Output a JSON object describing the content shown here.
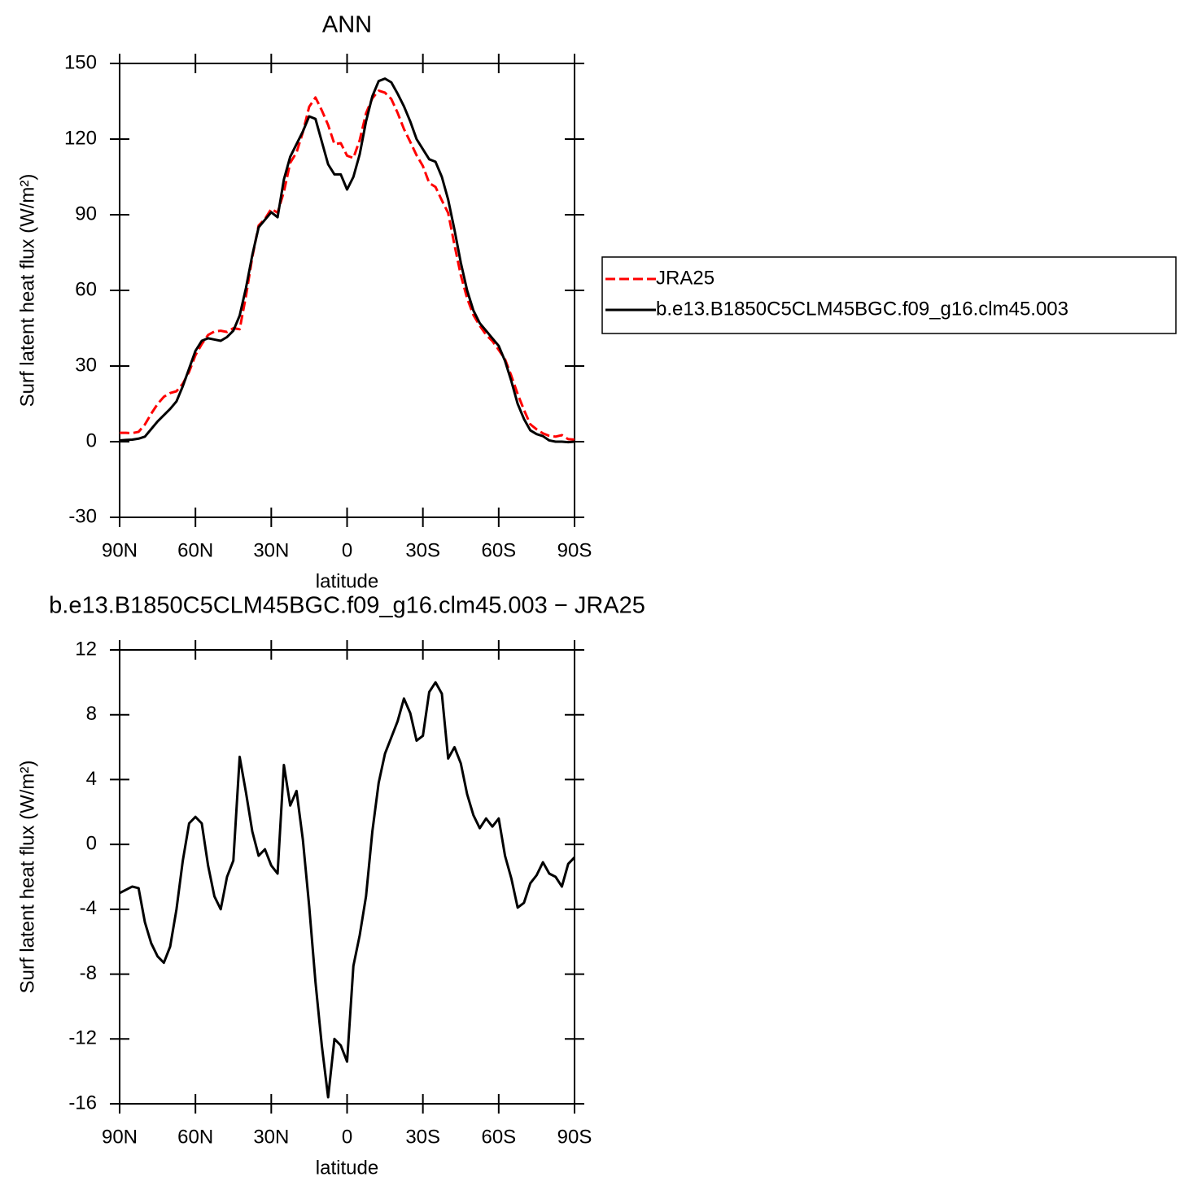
{
  "chart_data": [
    {
      "type": "line",
      "title": "ANN",
      "xlabel": "latitude",
      "ylabel": "Surf latent heat flux (W/m²)",
      "x": [
        90,
        87.5,
        85,
        82.5,
        80,
        77.5,
        75,
        72.5,
        70,
        67.5,
        65,
        62.5,
        60,
        57.5,
        55,
        52.5,
        50,
        47.5,
        45,
        42.5,
        40,
        37.5,
        35,
        32.5,
        30,
        27.5,
        25,
        22.5,
        20,
        17.5,
        15,
        12.5,
        10,
        7.5,
        5,
        2.5,
        0,
        -2.5,
        -5,
        -7.5,
        -10,
        -12.5,
        -15,
        -17.5,
        -20,
        -22.5,
        -25,
        -27.5,
        -30,
        -32.5,
        -35,
        -37.5,
        -40,
        -42.5,
        -45,
        -47.5,
        -50,
        -52.5,
        -55,
        -57.5,
        -60,
        -62.5,
        -65,
        -67.5,
        -70,
        -72.5,
        -75,
        -77.5,
        -80,
        -82.5,
        -85,
        -87.5,
        -90
      ],
      "series": [
        {
          "name": "JRA25",
          "color": "#ff0000",
          "style": "dashed",
          "values": [
            3.5,
            3.5,
            3.4,
            3.9,
            6.8,
            11.1,
            14.9,
            17.8,
            19.3,
            20,
            23,
            27.7,
            34.3,
            38.7,
            42.3,
            43.7,
            44,
            43.5,
            45,
            44.6,
            57.8,
            73.2,
            85.7,
            88.3,
            92.3,
            90.8,
            99.1,
            110.6,
            114.7,
            122.7,
            132.8,
            136.5,
            131.4,
            125.6,
            118,
            118.4,
            113.4,
            112.5,
            119.6,
            130.2,
            136.2,
            139.2,
            138.4,
            135.9,
            130.4,
            124,
            118.9,
            113.6,
            109.3,
            102.6,
            101,
            95.7,
            90.7,
            78,
            66,
            56.9,
            50.2,
            46,
            42.4,
            39.9,
            36.4,
            32.7,
            26.1,
            18.9,
            12.6,
            6.9,
            4.9,
            3.3,
            2.3,
            2,
            2.6,
            1,
            0.8
          ]
        },
        {
          "name": "b.e13.B1850C5CLM45BGC.f09_g16.clm45.003",
          "color": "#000000",
          "style": "solid",
          "values": [
            0.5,
            0.7,
            0.8,
            1.2,
            2,
            5,
            8,
            10.5,
            13,
            16,
            22,
            29,
            36,
            40,
            41,
            40.5,
            40,
            41.5,
            44,
            50,
            61,
            74,
            85,
            88,
            91,
            89,
            104,
            113,
            118,
            123,
            129,
            128,
            119,
            110,
            106,
            106,
            100,
            105,
            114,
            127,
            137,
            143,
            144,
            142.5,
            138,
            133,
            127,
            120,
            116,
            112,
            111,
            105,
            96,
            84,
            71,
            60,
            52,
            47,
            44,
            41,
            38,
            32,
            24,
            15,
            9,
            4.5,
            3,
            2.2,
            0.5,
            0,
            0,
            -0.2,
            0
          ]
        }
      ],
      "xlim": [
        90,
        -90
      ],
      "xticks": [
        {
          "value": 90,
          "label": "90N"
        },
        {
          "value": 60,
          "label": "60N"
        },
        {
          "value": 30,
          "label": "30N"
        },
        0,
        {
          "value": -30,
          "label": "30S"
        },
        {
          "value": -60,
          "label": "60S"
        },
        {
          "value": -90,
          "label": "90S"
        }
      ],
      "ylim": [
        -30,
        150
      ],
      "yticks": [
        -30,
        0,
        30,
        60,
        90,
        120,
        150
      ],
      "legend": "right"
    },
    {
      "type": "line",
      "title": "b.e13.B1850C5CLM45BGC.f09_g16.clm45.003 − JRA25",
      "xlabel": "latitude",
      "ylabel": "Surf latent heat flux (W/m²)",
      "x": [
        90,
        87.5,
        85,
        82.5,
        80,
        77.5,
        75,
        72.5,
        70,
        67.5,
        65,
        62.5,
        60,
        57.5,
        55,
        52.5,
        50,
        47.5,
        45,
        42.5,
        40,
        37.5,
        35,
        32.5,
        30,
        27.5,
        25,
        22.5,
        20,
        17.5,
        15,
        12.5,
        10,
        7.5,
        5,
        2.5,
        0,
        -2.5,
        -5,
        -7.5,
        -10,
        -12.5,
        -15,
        -17.5,
        -20,
        -22.5,
        -25,
        -27.5,
        -30,
        -32.5,
        -35,
        -37.5,
        -40,
        -42.5,
        -45,
        -47.5,
        -50,
        -52.5,
        -55,
        -57.5,
        -60,
        -62.5,
        -65,
        -67.5,
        -70,
        -72.5,
        -75,
        -77.5,
        -80,
        -82.5,
        -85,
        -87.5,
        -90
      ],
      "series": [
        {
          "color": "#000000",
          "style": "solid",
          "values": [
            -3,
            -2.8,
            -2.6,
            -2.7,
            -4.8,
            -6.1,
            -6.9,
            -7.3,
            -6.3,
            -4,
            -1,
            1.3,
            1.7,
            1.3,
            -1.3,
            -3.2,
            -4,
            -2,
            -1,
            5.4,
            3.2,
            0.8,
            -0.7,
            -0.3,
            -1.3,
            -1.8,
            4.9,
            2.4,
            3.3,
            0.3,
            -3.8,
            -8.5,
            -12.4,
            -15.6,
            -12,
            -12.4,
            -13.4,
            -7.5,
            -5.6,
            -3.2,
            0.8,
            3.8,
            5.6,
            6.6,
            7.6,
            9,
            8.1,
            6.4,
            6.7,
            9.4,
            10,
            9.3,
            5.3,
            6,
            5,
            3.1,
            1.8,
            1,
            1.6,
            1.1,
            1.6,
            -0.7,
            -2.1,
            -3.9,
            -3.6,
            -2.4,
            -1.9,
            -1.1,
            -1.8,
            -2,
            -2.6,
            -1.2,
            -0.8
          ]
        }
      ],
      "xlim": [
        90,
        -90
      ],
      "xticks": [
        {
          "value": 90,
          "label": "90N"
        },
        {
          "value": 60,
          "label": "60N"
        },
        {
          "value": 30,
          "label": "30N"
        },
        0,
        {
          "value": -30,
          "label": "30S"
        },
        {
          "value": -60,
          "label": "60S"
        },
        {
          "value": -90,
          "label": "90S"
        }
      ],
      "ylim": [
        -16,
        12
      ],
      "yticks": [
        -16,
        -12,
        -8,
        -4,
        0,
        4,
        8,
        12
      ]
    }
  ]
}
